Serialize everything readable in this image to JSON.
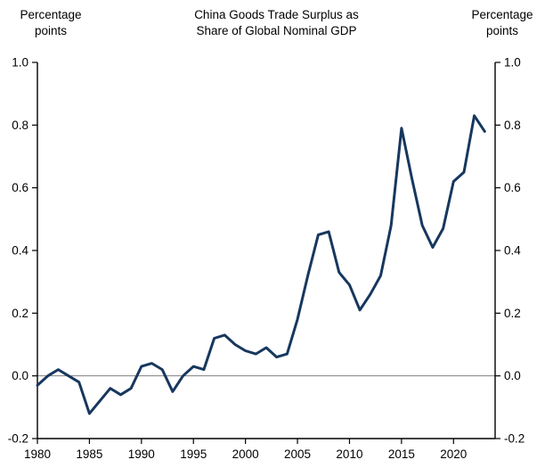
{
  "header": {
    "title_line1": "China Goods Trade Surplus as",
    "title_line2": "Share of Global Nominal GDP",
    "left_unit_line1": "Percentage",
    "left_unit_line2": "points",
    "right_unit_line1": "Percentage",
    "right_unit_line2": "points"
  },
  "chart_data": {
    "type": "line",
    "title": "China Goods Trade Surplus as Share of Global Nominal GDP",
    "xlabel": "",
    "ylabel": "Percentage points",
    "x": [
      1980,
      1981,
      1982,
      1983,
      1984,
      1985,
      1986,
      1987,
      1988,
      1989,
      1990,
      1991,
      1992,
      1993,
      1994,
      1995,
      1996,
      1997,
      1998,
      1999,
      2000,
      2001,
      2002,
      2003,
      2004,
      2005,
      2006,
      2007,
      2008,
      2009,
      2010,
      2011,
      2012,
      2013,
      2014,
      2015,
      2016,
      2017,
      2018,
      2019,
      2020,
      2021,
      2022,
      2023
    ],
    "series": [
      {
        "name": "China goods trade surplus as share of global nominal GDP",
        "values": [
          -0.03,
          0.0,
          0.02,
          0.0,
          -0.02,
          -0.12,
          -0.08,
          -0.04,
          -0.06,
          -0.04,
          0.03,
          0.04,
          0.02,
          -0.05,
          0.0,
          0.03,
          0.02,
          0.12,
          0.13,
          0.1,
          0.08,
          0.07,
          0.09,
          0.06,
          0.07,
          0.18,
          0.32,
          0.45,
          0.46,
          0.33,
          0.29,
          0.21,
          0.26,
          0.32,
          0.48,
          0.79,
          0.63,
          0.48,
          0.41,
          0.47,
          0.62,
          0.65,
          0.83,
          0.78
        ]
      }
    ],
    "xlim": [
      1980,
      2024
    ],
    "ylim": [
      -0.2,
      1.0
    ],
    "xticks": [
      1980,
      1985,
      1990,
      1995,
      2000,
      2005,
      2010,
      2015,
      2020
    ],
    "yticks": [
      1.0,
      0.8,
      0.6,
      0.4,
      0.2,
      0.0,
      -0.2
    ],
    "ytick_labels": [
      "1.0",
      "0.8",
      "0.6",
      "0.4",
      "0.2",
      "0.0",
      "-0.2"
    ],
    "grid": false,
    "zero_line": true,
    "legend_position": "none",
    "line_color": "#17375e",
    "axis_color": "#000000",
    "zero_line_color": "#808080",
    "text_color": "#000000"
  }
}
